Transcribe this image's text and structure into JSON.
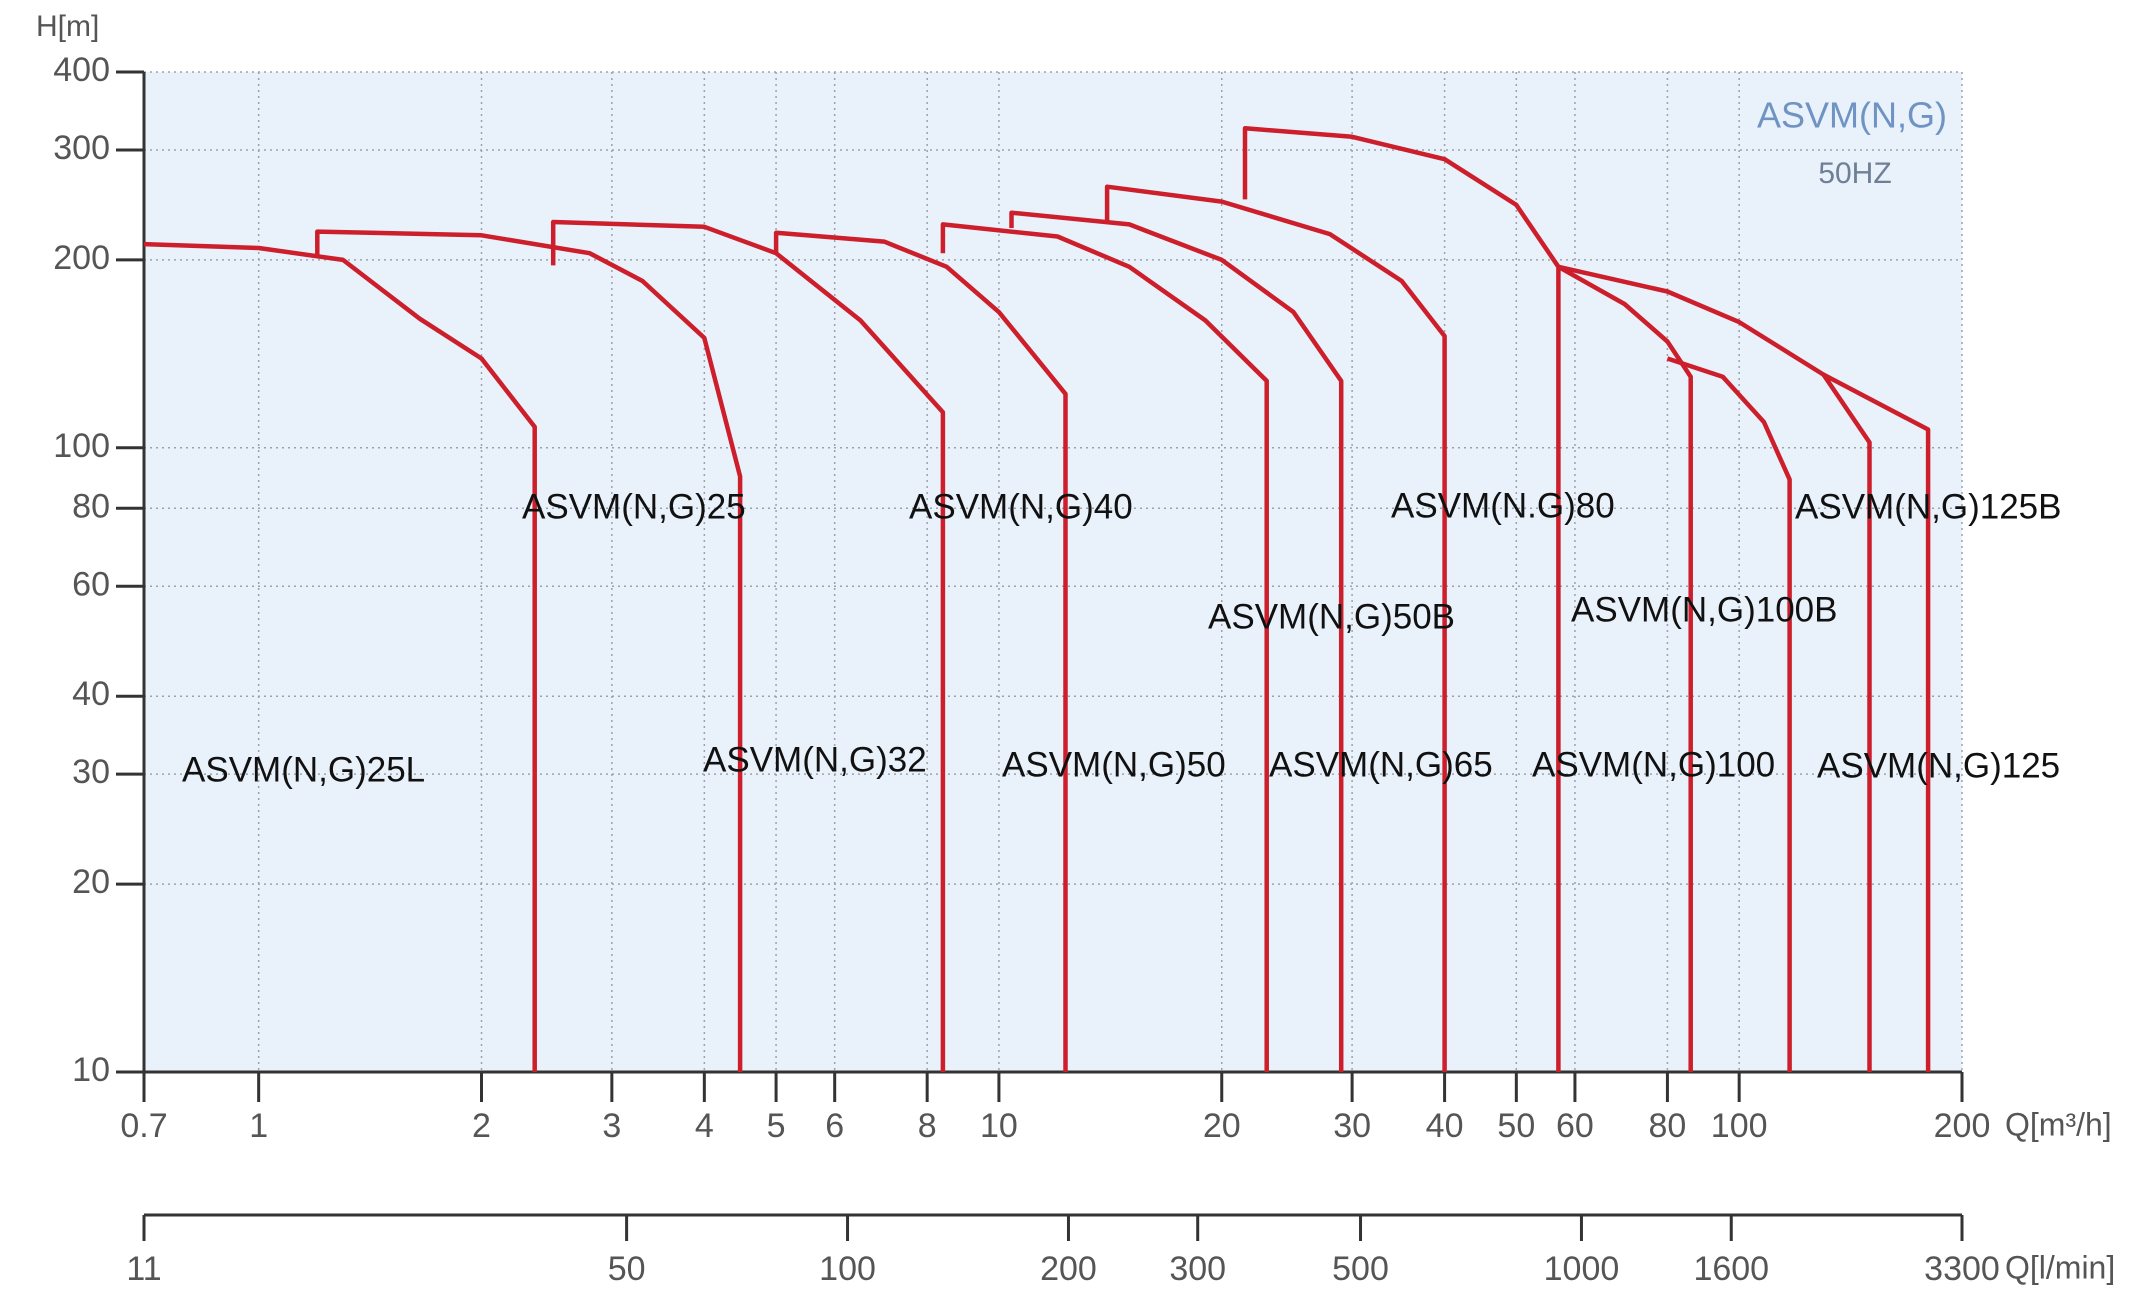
{
  "chart_data": {
    "type": "line",
    "title": "ASVM(N,G)",
    "subtitle": "50HZ",
    "y_label": "H[m]",
    "x_label": "Q[m³/h]",
    "x2_label": "Q[l/min]",
    "log_x": true,
    "log_y": true,
    "grid": true,
    "xlim": [
      0.7,
      200
    ],
    "xticks": [
      0.7,
      1,
      2,
      3,
      4,
      5,
      6,
      8,
      10,
      20,
      30,
      40,
      50,
      60,
      80,
      100,
      200
    ],
    "x2lim": [
      11,
      3300
    ],
    "x2ticks": [
      11,
      50,
      100,
      200,
      300,
      500,
      1000,
      1600,
      3300
    ],
    "ylim": [
      10,
      400
    ],
    "yticks": [
      10,
      20,
      30,
      40,
      60,
      80,
      100,
      200,
      300,
      400
    ],
    "series": [
      {
        "name": "ASVM(N,G)25L",
        "color": "#cc1f2b",
        "x": [
          0.7,
          1,
          1.3,
          1.65,
          2,
          2.36,
          2.36
        ],
        "values": [
          212,
          209,
          200,
          161,
          139,
          108,
          10
        ]
      },
      {
        "name": "ASVM(N,G)25",
        "color": "#cc1f2b",
        "x": [
          1.2,
          1.2,
          2,
          2.8,
          3.3,
          4,
          4.47,
          4.47
        ],
        "values": [
          202,
          222,
          219,
          205,
          185,
          150,
          90,
          10
        ]
      },
      {
        "name": "ASVM(N,G)32",
        "color": "#cc1f2b",
        "x": [
          2.5,
          2.5,
          4,
          5,
          6.5,
          8.4,
          8.4
        ],
        "values": [
          196,
          230,
          226,
          205,
          160,
          114,
          10
        ]
      },
      {
        "name": "ASVM(N,G)40",
        "color": "#cc1f2b",
        "x": [
          5,
          5,
          7,
          8.5,
          10,
          12.3,
          12.3
        ],
        "values": [
          205,
          221,
          214,
          195,
          165,
          122,
          10
        ]
      },
      {
        "name": "ASVM(N,G)50",
        "color": "#cc1f2b",
        "x": [
          8.4,
          8.4,
          12,
          15,
          19,
          23,
          23
        ],
        "values": [
          205,
          228,
          218,
          195,
          160,
          128,
          10
        ]
      },
      {
        "name": "ASVM(N,G)50B",
        "color": "#cc1f2b",
        "x": [
          10.4,
          10.4,
          15,
          20,
          25,
          29,
          29
        ],
        "values": [
          225,
          238,
          228,
          200,
          165,
          128,
          10
        ]
      },
      {
        "name": "ASVM(N,G)65",
        "color": "#cc1f2b",
        "x": [
          14,
          14,
          20,
          28,
          35,
          40,
          40
        ],
        "values": [
          230,
          262,
          248,
          220,
          185,
          151,
          10
        ]
      },
      {
        "name": "ASVM(N.G)80",
        "color": "#cc1f2b",
        "x": [
          21.5,
          21.5,
          30,
          40,
          50,
          57,
          57
        ],
        "values": [
          250,
          325,
          315,
          290,
          245,
          195,
          10
        ]
      },
      {
        "name": "ASVM(N,G)100",
        "color": "#cc1f2b",
        "x": [
          80,
          95,
          108,
          117,
          117
        ],
        "values": [
          139,
          130,
          110,
          89,
          10
        ]
      },
      {
        "name": "ASVM(N,G)100B",
        "color": "#cc1f2b",
        "x": [
          57,
          70,
          80,
          86,
          86
        ],
        "values": [
          195,
          170,
          148,
          130,
          10
        ]
      },
      {
        "name": "ASVM(N,G)125",
        "color": "#cc1f2b",
        "x": [
          57,
          80,
          100,
          130,
          150,
          150
        ],
        "values": [
          195,
          178,
          159,
          131,
          102,
          10
        ]
      },
      {
        "name": "ASVM(N,G)125B",
        "color": "#cc1f2b",
        "x": [
          130,
          180,
          180
        ],
        "values": [
          131,
          107,
          10
        ]
      }
    ]
  }
}
